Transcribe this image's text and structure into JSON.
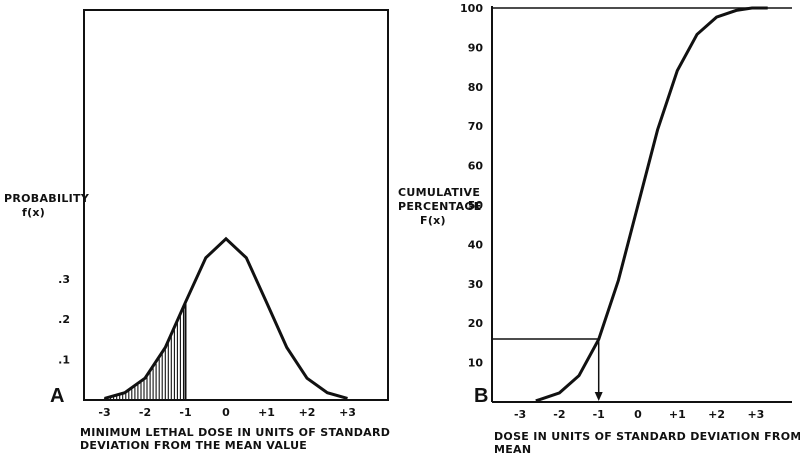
{
  "chart_data": [
    {
      "type": "line",
      "panel_label": "A",
      "ylabel_lines": [
        "PROBABILITY",
        "f(x)"
      ],
      "xlabel_lines": [
        "MINIMUM LETHAL DOSE IN UNITS OF STANDARD",
        "DEVIATION FROM THE MEAN VALUE"
      ],
      "xticks": [
        "-3",
        "-2",
        "-1",
        "0",
        "+1",
        "+2",
        "+3"
      ],
      "yticks": [
        ".1",
        ".2",
        ".3"
      ],
      "xlim": [
        -3.3,
        3.3
      ],
      "ylim": [
        0,
        1.0
      ],
      "series": [
        {
          "curve": "standard normal density",
          "x": [
            -3,
            -2.5,
            -2,
            -1.5,
            -1,
            -0.5,
            0,
            0.5,
            1,
            1.5,
            2,
            2.5,
            3
          ],
          "y": [
            0.004,
            0.018,
            0.054,
            0.13,
            0.242,
            0.352,
            0.399,
            0.352,
            0.242,
            0.13,
            0.054,
            0.018,
            0.004
          ]
        }
      ],
      "shaded_region": {
        "x_from": -3,
        "x_to": -1
      }
    },
    {
      "type": "line",
      "panel_label": "B",
      "ylabel_lines": [
        "CUMULATIVE",
        "PERCENTAGE",
        "F(x)"
      ],
      "xlabel_lines": [
        "DOSE IN UNITS OF STANDARD DEVIATION FROM THE",
        "MEAN"
      ],
      "xticks": [
        "-3",
        "-2",
        "-1",
        "0",
        "+1",
        "+2",
        "+3"
      ],
      "yticks": [
        "10",
        "20",
        "30",
        "40",
        "50",
        "60",
        "70",
        "80",
        "90",
        "100"
      ],
      "xlim": [
        -3.3,
        3.3
      ],
      "ylim": [
        0,
        100
      ],
      "series": [
        {
          "curve": "cumulative normal distribution (percent)",
          "x": [
            -3,
            -2.5,
            -2,
            -1.5,
            -1,
            -0.5,
            0,
            0.5,
            1,
            1.5,
            2,
            2.5,
            3
          ],
          "y": [
            0.1,
            0.6,
            2.3,
            6.7,
            15.9,
            30.9,
            50,
            69.1,
            84.1,
            93.3,
            97.7,
            99.4,
            99.9
          ]
        }
      ],
      "reference_point": {
        "x": -1,
        "y": 16
      }
    }
  ]
}
